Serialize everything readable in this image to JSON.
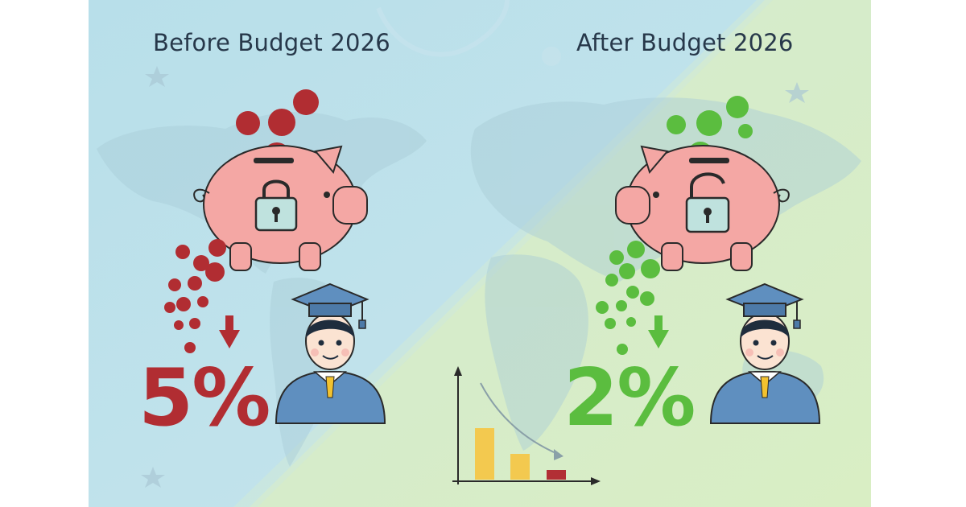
{
  "before": {
    "title": "Before Budget 2026",
    "rate": "5%",
    "color": "#b12d32"
  },
  "after": {
    "title": "After Budget 2026",
    "rate": "2%",
    "color": "#5bbd3f"
  },
  "colors": {
    "bg_left": "#bde0ea",
    "bg_right": "#d5ebc6",
    "piggy": "#f4a7a4",
    "lock": "#bfe2de",
    "gown": "#5f8fbf",
    "bar_high": "#f3c94f",
    "bar_low": "#b22f35"
  },
  "icons": [
    "piggy-bank-icon",
    "locked-padlock-icon",
    "unlocked-padlock-icon",
    "graduate-student-icon",
    "down-arrow-icon",
    "declining-bar-chart-icon",
    "world-map-icon",
    "coin-icon"
  ]
}
